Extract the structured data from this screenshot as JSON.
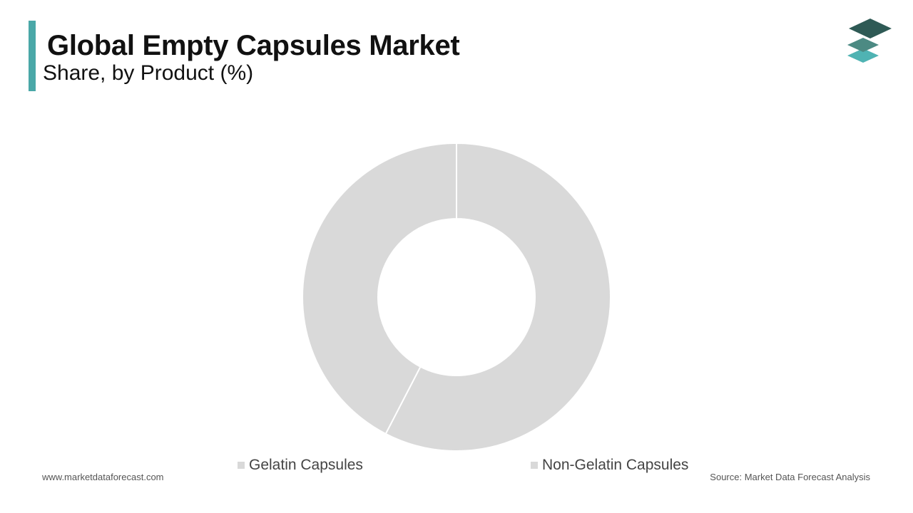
{
  "header": {
    "title": "Global Empty Capsules Market",
    "subtitle": "Share, by Product (%)"
  },
  "footer": {
    "website": "www.marketdataforecast.com",
    "source": "Source: Market Data Forecast Analysis"
  },
  "colors": {
    "accent": "#4aa8a8",
    "slice": "#d9d9d9",
    "separator": "#ffffff",
    "logo_top": "#2e5a55",
    "logo_mid": "#4c8a83",
    "logo_bottom": "#4fb3b3"
  },
  "icons": {
    "logo": "stacked-layers-icon"
  },
  "chart_data": {
    "type": "pie",
    "variant": "donut",
    "title": "Global Empty Capsules Market",
    "subtitle": "Share, by Product (%)",
    "categories": [
      "Gelatin Capsules",
      "Non-Gelatin Capsules"
    ],
    "values": [
      57.6,
      42.4
    ],
    "start_angle_deg": 0,
    "direction": "clockwise",
    "legend_position": "bottom",
    "data_labels": false
  }
}
